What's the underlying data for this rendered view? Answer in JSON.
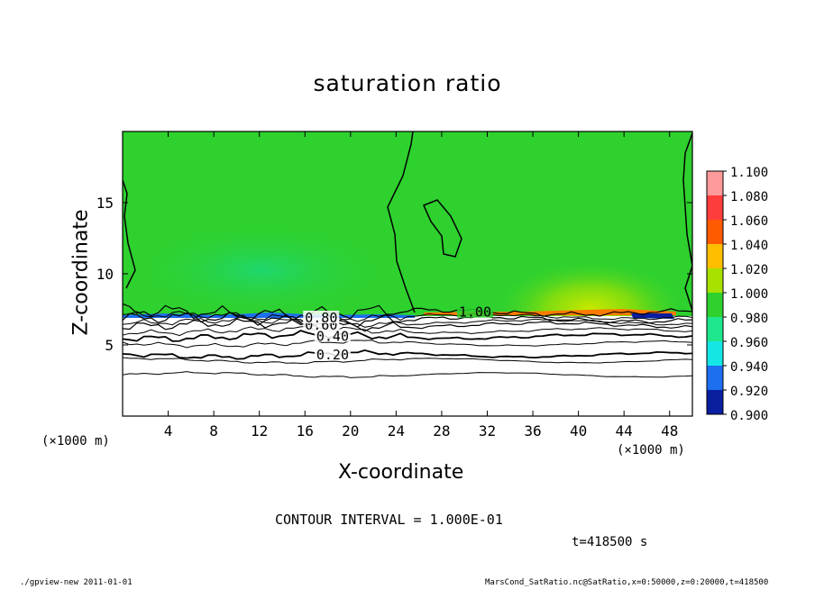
{
  "title": "saturation ratio",
  "xlabel": "X-coordinate",
  "ylabel": "Z-coordinate",
  "x_unit_label": "(×1000 m)",
  "contour_interval_text": "CONTOUR INTERVAL = 1.000E-01",
  "time_text": "t=418500 s",
  "footer_left": "./gpview-new  2011-01-01",
  "footer_right": "MarsCond_SatRatio.nc@SatRatio,x=0:50000,z=0:20000,t=418500",
  "chart_data": {
    "type": "heatmap",
    "title": "saturation ratio",
    "xlabel": "X-coordinate",
    "ylabel": "Z-coordinate",
    "xlim": [
      0,
      50
    ],
    "ylim": [
      0,
      20
    ],
    "x_ticks": [
      "4",
      "8",
      "12",
      "16",
      "20",
      "24",
      "28",
      "32",
      "36",
      "40",
      "44",
      "48"
    ],
    "y_ticks": [
      "5",
      "10",
      "15"
    ],
    "colorbar": {
      "levels": [
        "1.100",
        "1.080",
        "1.060",
        "1.040",
        "1.020",
        "1.000",
        "0.980",
        "0.960",
        "0.940",
        "0.920",
        "0.900"
      ],
      "colors": [
        "#ff9a9a",
        "#ff3c3c",
        "#ff5a00",
        "#ffbe00",
        "#a8e000",
        "#2ed12e",
        "#1ee68c",
        "#14e6e6",
        "#1e6ef0",
        "#0a1ea0",
        "#6e1eb4"
      ]
    },
    "contour_labels": [
      "0.20",
      "0.40",
      "0.60",
      "0.80",
      "1.00"
    ],
    "contour_levels": [
      {
        "value": 0.2,
        "z": 4.3
      },
      {
        "value": 0.4,
        "z": 5.6
      },
      {
        "value": 0.6,
        "z": 6.4
      },
      {
        "value": 0.8,
        "z": 6.8
      },
      {
        "value": 1.0,
        "z": 7.3
      }
    ]
  }
}
